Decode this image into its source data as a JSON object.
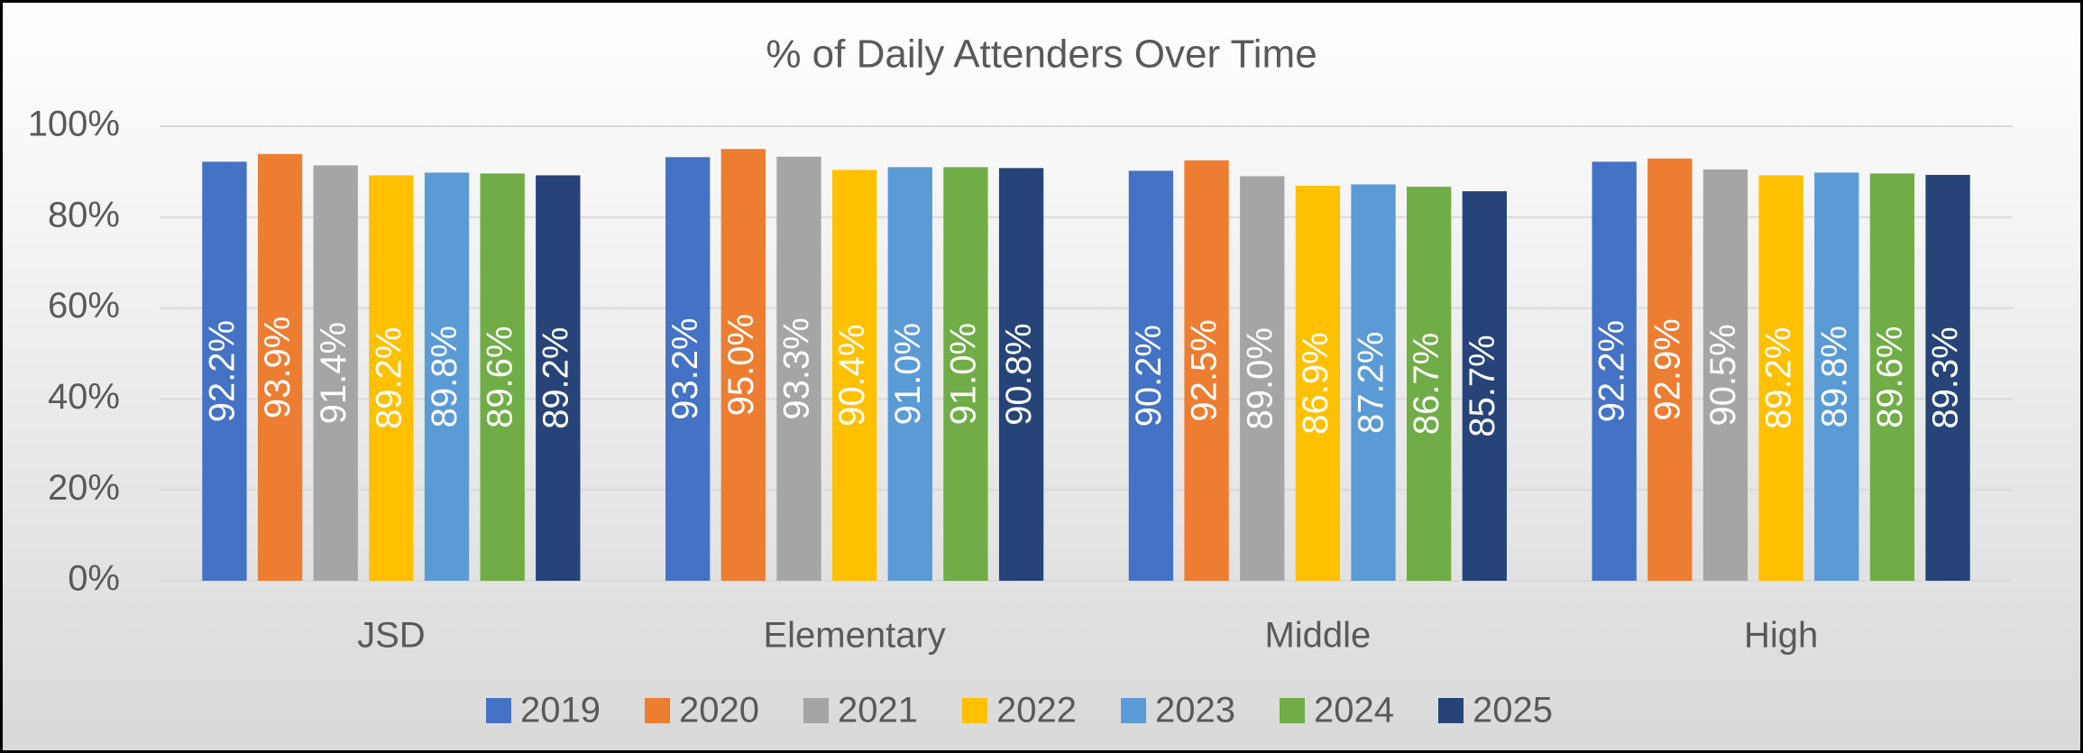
{
  "chart_data": {
    "type": "bar",
    "title": "% of Daily Attenders Over Time",
    "categories": [
      "JSD",
      "Elementary",
      "Middle",
      "High"
    ],
    "series": [
      {
        "name": "2019",
        "color": "#4472c4",
        "values": [
          92.2,
          93.2,
          90.2,
          92.2
        ],
        "value_labels": [
          "92.2%",
          "93.2%",
          "90.2%",
          "92.2%"
        ]
      },
      {
        "name": "2020",
        "color": "#ed7d31",
        "values": [
          93.9,
          95.0,
          92.5,
          92.9
        ],
        "value_labels": [
          "93.9%",
          "95.0%",
          "92.5%",
          "92.9%"
        ]
      },
      {
        "name": "2021",
        "color": "#a5a5a5",
        "values": [
          91.4,
          93.3,
          89.0,
          90.5
        ],
        "value_labels": [
          "91.4%",
          "93.3%",
          "89.0%",
          "90.5%"
        ]
      },
      {
        "name": "2022",
        "color": "#ffc000",
        "values": [
          89.2,
          90.4,
          86.9,
          89.2
        ],
        "value_labels": [
          "89.2%",
          "90.4%",
          "86.9%",
          "89.2%"
        ]
      },
      {
        "name": "2023",
        "color": "#5b9bd5",
        "values": [
          89.8,
          91.0,
          87.2,
          89.8
        ],
        "value_labels": [
          "89.8%",
          "91.0%",
          "87.2%",
          "89.8%"
        ]
      },
      {
        "name": "2024",
        "color": "#70ad47",
        "values": [
          89.6,
          91.0,
          86.7,
          89.6
        ],
        "value_labels": [
          "89.6%",
          "91.0%",
          "86.7%",
          "89.6%"
        ]
      },
      {
        "name": "2025",
        "color": "#264478",
        "values": [
          89.2,
          90.8,
          85.7,
          89.3
        ],
        "value_labels": [
          "89.2%",
          "90.8%",
          "85.7%",
          "89.3%"
        ]
      }
    ],
    "ylim": [
      0,
      100
    ],
    "yticks": [
      {
        "value": 0,
        "label": "0%"
      },
      {
        "value": 20,
        "label": "20%"
      },
      {
        "value": 40,
        "label": "40%"
      },
      {
        "value": 60,
        "label": "60%"
      },
      {
        "value": 80,
        "label": "80%"
      },
      {
        "value": 100,
        "label": "100%"
      }
    ],
    "grid": true,
    "legend": "bottom"
  }
}
